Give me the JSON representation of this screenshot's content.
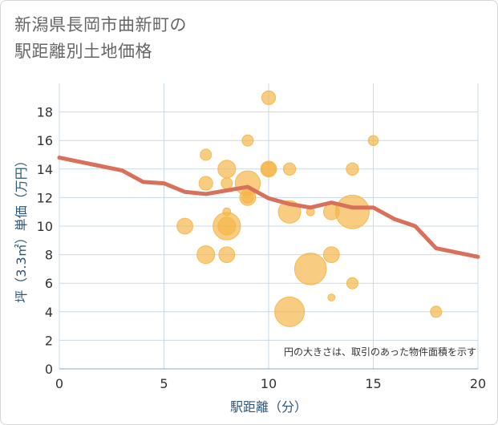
{
  "title": {
    "line1": "新潟県長岡市曲新町の",
    "line2": "駅距離別土地価格"
  },
  "colors": {
    "bubble": "#f5b546",
    "line": "#d9705a",
    "grid": "#c9d9e8",
    "axis_text": "#2f5678"
  },
  "chart_data": {
    "type": "scatter",
    "title": "新潟県長岡市曲新町の駅距離別土地価格",
    "xlabel": "駅距離（分）",
    "ylabel": "坪（3.3㎡）単価（万円）",
    "xlim": [
      0,
      20
    ],
    "ylim": [
      0,
      20
    ],
    "xticks": [
      0,
      5,
      10,
      15,
      20
    ],
    "yticks": [
      0,
      2,
      4,
      6,
      8,
      10,
      12,
      14,
      16,
      18
    ],
    "note": "円の大きさは、取引のあった物件面積を示す",
    "bubbles": [
      {
        "x": 6,
        "y": 10,
        "size": 2
      },
      {
        "x": 7,
        "y": 15,
        "size": 1
      },
      {
        "x": 7,
        "y": 13,
        "size": 1.5
      },
      {
        "x": 7,
        "y": 8,
        "size": 2.5
      },
      {
        "x": 8,
        "y": 14,
        "size": 2.5
      },
      {
        "x": 8,
        "y": 13,
        "size": 1
      },
      {
        "x": 8,
        "y": 11,
        "size": 0.5
      },
      {
        "x": 8,
        "y": 10,
        "size": 6
      },
      {
        "x": 8,
        "y": 10,
        "size": 2.5
      },
      {
        "x": 8,
        "y": 8,
        "size": 2
      },
      {
        "x": 9,
        "y": 16,
        "size": 1
      },
      {
        "x": 9,
        "y": 13,
        "size": 5
      },
      {
        "x": 9,
        "y": 12,
        "size": 2
      },
      {
        "x": 9,
        "y": 12,
        "size": 1
      },
      {
        "x": 10,
        "y": 19,
        "size": 1.5
      },
      {
        "x": 10,
        "y": 14,
        "size": 2
      },
      {
        "x": 10,
        "y": 14,
        "size": 1.5
      },
      {
        "x": 11,
        "y": 14,
        "size": 1.2
      },
      {
        "x": 11,
        "y": 11,
        "size": 4
      },
      {
        "x": 11,
        "y": 4,
        "size": 7
      },
      {
        "x": 12,
        "y": 11,
        "size": 0.5
      },
      {
        "x": 12,
        "y": 7,
        "size": 8
      },
      {
        "x": 13,
        "y": 11,
        "size": 2
      },
      {
        "x": 13,
        "y": 8,
        "size": 2
      },
      {
        "x": 13,
        "y": 5,
        "size": 0.4
      },
      {
        "x": 14,
        "y": 14,
        "size": 1.2
      },
      {
        "x": 14,
        "y": 11,
        "size": 9
      },
      {
        "x": 14,
        "y": 6,
        "size": 1
      },
      {
        "x": 15,
        "y": 16,
        "size": 0.8
      },
      {
        "x": 18,
        "y": 4,
        "size": 1
      }
    ],
    "line": {
      "x": [
        0,
        1,
        2,
        3,
        4,
        5,
        6,
        7,
        8,
        9,
        10,
        11,
        12,
        13,
        14,
        15,
        16,
        17,
        18,
        19,
        20
      ],
      "y": [
        14.8,
        14.5,
        14.2,
        13.9,
        13.1,
        13.0,
        12.4,
        12.25,
        12.5,
        12.75,
        11.95,
        11.55,
        11.3,
        11.65,
        11.3,
        11.3,
        10.5,
        10.0,
        8.45,
        8.15,
        7.85
      ]
    }
  }
}
